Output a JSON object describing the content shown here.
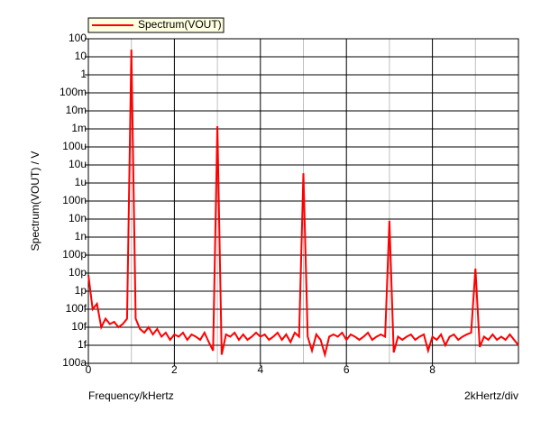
{
  "chart_data": {
    "type": "line",
    "legend_label_box": true,
    "ylabel": "Spectrum(VOUT) / V",
    "xlabel": "Frequency/kHertz",
    "annotation": "2kHertz/div",
    "log_y": true,
    "grid": true,
    "legend": "top-left",
    "xlim": [
      0,
      10
    ],
    "xticks": [
      0,
      2,
      4,
      6,
      8
    ],
    "ylim": [
      1e-16,
      100
    ],
    "yticks": [
      100,
      10,
      1,
      {
        "value": 0.1,
        "label": "100m"
      },
      {
        "value": 0.01,
        "label": "10m"
      },
      {
        "value": 0.001,
        "label": "1m"
      },
      {
        "value": 0.0001,
        "label": "100u"
      },
      {
        "value": 1e-05,
        "label": "10u"
      },
      {
        "value": 1e-06,
        "label": "1u"
      },
      {
        "value": 1e-07,
        "label": "100n"
      },
      {
        "value": 1e-08,
        "label": "10n"
      },
      {
        "value": 1e-09,
        "label": "1n"
      },
      {
        "value": 1e-10,
        "label": "100p"
      },
      {
        "value": 1e-11,
        "label": "10p"
      },
      {
        "value": 1e-12,
        "label": "1p"
      },
      {
        "value": 1e-13,
        "label": "100f"
      },
      {
        "value": 1e-14,
        "label": "10f"
      },
      {
        "value": 1e-15,
        "label": "1f"
      },
      {
        "value": 1e-16,
        "label": "100a"
      }
    ],
    "x": [
      0,
      0.1,
      0.2,
      0.3,
      0.4,
      0.5,
      0.6,
      0.7,
      0.8,
      0.9,
      1,
      1.1,
      1.2,
      1.3,
      1.4,
      1.5,
      1.6,
      1.7,
      1.8,
      1.9,
      2,
      2.1,
      2.2,
      2.3,
      2.4,
      2.5,
      2.6,
      2.7,
      2.8,
      2.9,
      3,
      3.1,
      3.2,
      3.3,
      3.4,
      3.5,
      3.6,
      3.7,
      3.8,
      3.9,
      4,
      4.1,
      4.2,
      4.3,
      4.4,
      4.5,
      4.6,
      4.7,
      4.8,
      4.9,
      5,
      5.1,
      5.2,
      5.3,
      5.4,
      5.5,
      5.6,
      5.7,
      5.8,
      5.9,
      6,
      6.1,
      6.2,
      6.3,
      6.4,
      6.5,
      6.6,
      6.7,
      6.8,
      6.9,
      7,
      7.1,
      7.2,
      7.3,
      7.4,
      7.5,
      7.6,
      7.7,
      7.8,
      7.9,
      8,
      8.1,
      8.2,
      8.3,
      8.4,
      8.5,
      8.6,
      8.7,
      8.8,
      8.9,
      9,
      9.1,
      9.2,
      9.3,
      9.4,
      9.5,
      9.6,
      9.7,
      9.8,
      9.9,
      10
    ],
    "series": [
      {
        "name": "Spectrum(VOUT)",
        "color": "#ff0000",
        "values": [
          8e-12,
          1e-13,
          2e-13,
          1e-14,
          3e-14,
          1.5e-14,
          2e-14,
          1e-14,
          1.5e-14,
          3e-14,
          25,
          3e-14,
          8e-15,
          5e-15,
          1e-14,
          4e-15,
          8e-15,
          3e-15,
          5e-15,
          2e-15,
          4e-15,
          3e-15,
          5e-15,
          2e-15,
          4e-15,
          3e-15,
          2e-15,
          5e-15,
          1.5e-15,
          5e-16,
          0.0014,
          3e-16,
          4e-15,
          3e-15,
          5e-15,
          2e-15,
          4e-15,
          2e-15,
          3e-15,
          5e-15,
          3e-15,
          4e-15,
          2e-15,
          3e-15,
          5e-15,
          2e-15,
          4e-15,
          1.5e-15,
          5e-15,
          3e-15,
          3.5e-06,
          3e-15,
          5e-16,
          4e-15,
          2e-15,
          3e-16,
          3e-15,
          4e-15,
          3e-15,
          5e-15,
          2e-15,
          4e-15,
          3e-15,
          2e-15,
          3e-15,
          5e-15,
          2e-15,
          3e-15,
          4e-15,
          3e-15,
          8e-09,
          4e-16,
          3e-15,
          2e-15,
          3e-15,
          4e-15,
          2e-15,
          3e-15,
          4e-15,
          5e-16,
          3e-15,
          2e-15,
          4e-15,
          1e-15,
          3e-15,
          4e-15,
          2e-15,
          3e-15,
          4e-15,
          5e-15,
          1.8e-11,
          8e-16,
          3e-15,
          2e-15,
          4e-15,
          2e-15,
          3e-15,
          2e-15,
          4e-15,
          2e-15,
          1e-15
        ]
      }
    ]
  }
}
